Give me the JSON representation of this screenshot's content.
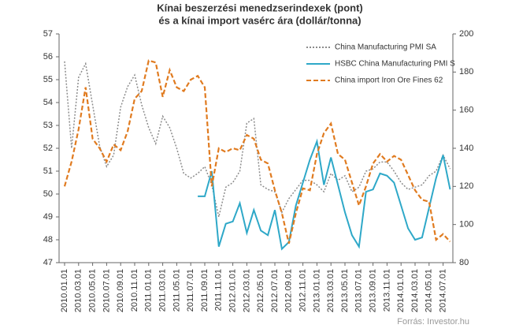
{
  "chart_data": {
    "type": "line",
    "title": "Kínai beszerzési menedzserindexek  (pont)",
    "subtitle": "és a kínai import vasérc ára (dollár/tonna)",
    "source": "Forrás: Investor.hu",
    "categories": [
      "2010.01.01",
      null,
      "2010.03.01",
      null,
      "2010.05.01",
      null,
      "2010.07.01",
      null,
      "2010.09.01",
      null,
      "2010.11.01",
      null,
      "2011.01.01",
      null,
      "2011.03.01",
      null,
      "2011.05.01",
      null,
      "2011.07.01",
      null,
      "2011.09.01",
      null,
      "2011.11.01",
      null,
      "2012.01.01",
      null,
      "2012.03.01",
      null,
      "2012.05.01",
      null,
      "2012.07.01",
      null,
      "2012.09.01",
      null,
      "2012.11.01",
      null,
      "2013.01.01",
      null,
      "2013.03.01",
      null,
      "2013.05.01",
      null,
      "2013.07.01",
      null,
      "2013.09.01",
      null,
      "2013.11.01",
      null,
      "2014.01.01",
      null,
      "2014.03.01",
      null,
      "2014.05.01",
      null,
      "2014.07.01",
      null
    ],
    "series": [
      {
        "name": "China Manufacturing PMI SA",
        "color": "#8c8c8c",
        "style": "dotted",
        "axis": "y",
        "values": [
          55.8,
          52.0,
          55.1,
          55.7,
          53.9,
          52.1,
          51.2,
          51.7,
          53.8,
          54.7,
          55.2,
          53.9,
          52.9,
          52.2,
          53.4,
          52.9,
          52.0,
          50.9,
          50.7,
          50.9,
          51.2,
          50.4,
          49.0,
          50.3,
          50.5,
          51.0,
          53.1,
          53.3,
          50.4,
          50.2,
          50.1,
          49.2,
          49.8,
          50.2,
          50.6,
          50.6,
          50.4,
          50.1,
          50.9,
          50.6,
          50.8,
          50.1,
          50.3,
          51.0,
          51.1,
          51.4,
          51.4,
          51.0,
          50.5,
          50.2,
          50.3,
          50.4,
          50.8,
          51.0,
          51.7,
          51.1
        ]
      },
      {
        "name": "HSBC China Manufacturing PMI S",
        "color": "#2ea8c8",
        "style": "solid",
        "axis": "y",
        "values": [
          null,
          null,
          null,
          null,
          null,
          null,
          null,
          null,
          null,
          null,
          null,
          null,
          null,
          null,
          null,
          null,
          null,
          null,
          null,
          49.9,
          49.9,
          51.0,
          47.7,
          48.7,
          48.8,
          49.6,
          48.3,
          49.3,
          48.4,
          48.2,
          49.3,
          47.6,
          47.9,
          49.5,
          50.5,
          51.5,
          52.3,
          50.4,
          51.6,
          50.4,
          49.2,
          48.2,
          47.7,
          50.1,
          50.2,
          50.9,
          50.8,
          50.5,
          49.5,
          48.5,
          48.0,
          48.1,
          49.4,
          50.7,
          51.7,
          50.2
        ]
      },
      {
        "name": "China import Iron Ore Fines 62",
        "color": "#e07b20",
        "style": "dashed",
        "axis": "y2",
        "values": [
          120,
          133,
          150,
          172,
          145,
          140,
          133,
          142,
          139,
          149,
          166,
          170,
          186,
          185,
          167,
          181,
          172,
          170,
          176,
          178,
          172,
          120,
          140,
          138,
          140,
          139,
          147,
          145,
          134,
          132,
          118,
          106,
          90,
          106,
          119,
          118,
          137,
          148,
          153,
          137,
          134,
          122,
          110,
          120,
          132,
          137,
          133,
          136,
          134,
          126,
          118,
          113,
          112,
          92,
          95,
          91
        ]
      }
    ],
    "ylim": [
      47,
      57
    ],
    "yticks": [
      47,
      48,
      49,
      50,
      51,
      52,
      53,
      54,
      55,
      56,
      57
    ],
    "y2lim": [
      80,
      200
    ],
    "y2ticks": [
      80,
      100,
      120,
      140,
      160,
      180,
      200
    ],
    "grid": false,
    "legend": "upper-right"
  }
}
